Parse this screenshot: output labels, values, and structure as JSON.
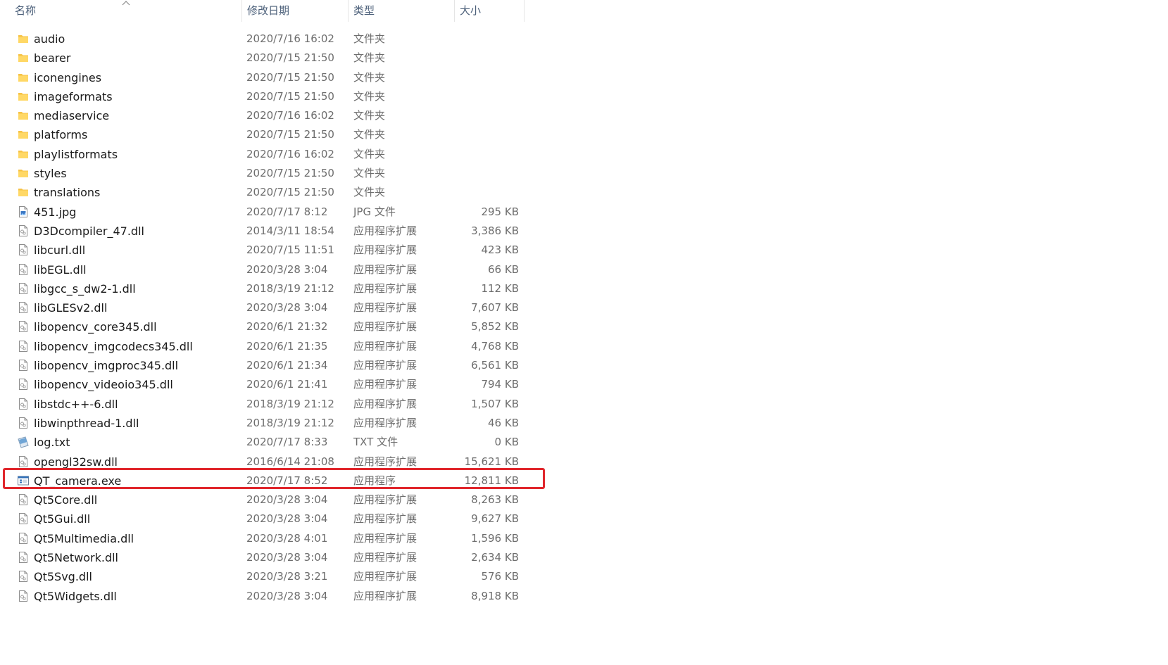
{
  "header": {
    "name": "名称",
    "date": "修改日期",
    "type": "类型",
    "size": "大小"
  },
  "highlight_color": "#e0262c",
  "files": [
    {
      "name": "audio",
      "date": "2020/7/16 16:02",
      "type": "文件夹",
      "size": "",
      "icon": "folder-icon"
    },
    {
      "name": "bearer",
      "date": "2020/7/15 21:50",
      "type": "文件夹",
      "size": "",
      "icon": "folder-icon"
    },
    {
      "name": "iconengines",
      "date": "2020/7/15 21:50",
      "type": "文件夹",
      "size": "",
      "icon": "folder-icon"
    },
    {
      "name": "imageformats",
      "date": "2020/7/15 21:50",
      "type": "文件夹",
      "size": "",
      "icon": "folder-icon"
    },
    {
      "name": "mediaservice",
      "date": "2020/7/16 16:02",
      "type": "文件夹",
      "size": "",
      "icon": "folder-icon"
    },
    {
      "name": "platforms",
      "date": "2020/7/15 21:50",
      "type": "文件夹",
      "size": "",
      "icon": "folder-icon"
    },
    {
      "name": "playlistformats",
      "date": "2020/7/16 16:02",
      "type": "文件夹",
      "size": "",
      "icon": "folder-icon"
    },
    {
      "name": "styles",
      "date": "2020/7/15 21:50",
      "type": "文件夹",
      "size": "",
      "icon": "folder-icon"
    },
    {
      "name": "translations",
      "date": "2020/7/15 21:50",
      "type": "文件夹",
      "size": "",
      "icon": "folder-icon"
    },
    {
      "name": "451.jpg",
      "date": "2020/7/17 8:12",
      "type": "JPG 文件",
      "size": "295 KB",
      "icon": "image-file-icon"
    },
    {
      "name": "D3Dcompiler_47.dll",
      "date": "2014/3/11 18:54",
      "type": "应用程序扩展",
      "size": "3,386 KB",
      "icon": "dll-file-icon"
    },
    {
      "name": "libcurl.dll",
      "date": "2020/7/15 11:51",
      "type": "应用程序扩展",
      "size": "423 KB",
      "icon": "dll-file-icon"
    },
    {
      "name": "libEGL.dll",
      "date": "2020/3/28 3:04",
      "type": "应用程序扩展",
      "size": "66 KB",
      "icon": "dll-file-icon"
    },
    {
      "name": "libgcc_s_dw2-1.dll",
      "date": "2018/3/19 21:12",
      "type": "应用程序扩展",
      "size": "112 KB",
      "icon": "dll-file-icon"
    },
    {
      "name": "libGLESv2.dll",
      "date": "2020/3/28 3:04",
      "type": "应用程序扩展",
      "size": "7,607 KB",
      "icon": "dll-file-icon"
    },
    {
      "name": "libopencv_core345.dll",
      "date": "2020/6/1 21:32",
      "type": "应用程序扩展",
      "size": "5,852 KB",
      "icon": "dll-file-icon"
    },
    {
      "name": "libopencv_imgcodecs345.dll",
      "date": "2020/6/1 21:35",
      "type": "应用程序扩展",
      "size": "4,768 KB",
      "icon": "dll-file-icon"
    },
    {
      "name": "libopencv_imgproc345.dll",
      "date": "2020/6/1 21:34",
      "type": "应用程序扩展",
      "size": "6,561 KB",
      "icon": "dll-file-icon"
    },
    {
      "name": "libopencv_videoio345.dll",
      "date": "2020/6/1 21:41",
      "type": "应用程序扩展",
      "size": "794 KB",
      "icon": "dll-file-icon"
    },
    {
      "name": "libstdc++-6.dll",
      "date": "2018/3/19 21:12",
      "type": "应用程序扩展",
      "size": "1,507 KB",
      "icon": "dll-file-icon"
    },
    {
      "name": "libwinpthread-1.dll",
      "date": "2018/3/19 21:12",
      "type": "应用程序扩展",
      "size": "46 KB",
      "icon": "dll-file-icon"
    },
    {
      "name": "log.txt",
      "date": "2020/7/17 8:33",
      "type": "TXT 文件",
      "size": "0 KB",
      "icon": "text-file-icon"
    },
    {
      "name": "opengl32sw.dll",
      "date": "2016/6/14 21:08",
      "type": "应用程序扩展",
      "size": "15,621 KB",
      "icon": "dll-file-icon"
    },
    {
      "name": "QT_camera.exe",
      "date": "2020/7/17 8:52",
      "type": "应用程序",
      "size": "12,811 KB",
      "icon": "exe-file-icon",
      "highlighted": true
    },
    {
      "name": "Qt5Core.dll",
      "date": "2020/3/28 3:04",
      "type": "应用程序扩展",
      "size": "8,263 KB",
      "icon": "dll-file-icon"
    },
    {
      "name": "Qt5Gui.dll",
      "date": "2020/3/28 3:04",
      "type": "应用程序扩展",
      "size": "9,627 KB",
      "icon": "dll-file-icon"
    },
    {
      "name": "Qt5Multimedia.dll",
      "date": "2020/3/28 4:01",
      "type": "应用程序扩展",
      "size": "1,596 KB",
      "icon": "dll-file-icon"
    },
    {
      "name": "Qt5Network.dll",
      "date": "2020/3/28 3:04",
      "type": "应用程序扩展",
      "size": "2,634 KB",
      "icon": "dll-file-icon"
    },
    {
      "name": "Qt5Svg.dll",
      "date": "2020/3/28 3:21",
      "type": "应用程序扩展",
      "size": "576 KB",
      "icon": "dll-file-icon"
    },
    {
      "name": "Qt5Widgets.dll",
      "date": "2020/3/28 3:04",
      "type": "应用程序扩展",
      "size": "8,918 KB",
      "icon": "dll-file-icon"
    }
  ]
}
